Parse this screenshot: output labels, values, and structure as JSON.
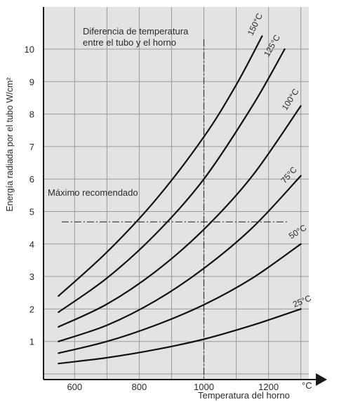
{
  "chart_data": {
    "type": "line",
    "title": "",
    "xlabel": "Temperatura del horno",
    "x_unit": "°C",
    "ylabel": "Energía radiada por el tubo W/cm²",
    "xlim": [
      500,
      1330
    ],
    "ylim": [
      -0.5,
      11.0
    ],
    "x_ticks": [
      600,
      800,
      1000,
      1200
    ],
    "y_ticks": [
      1,
      2,
      3,
      4,
      5,
      6,
      7,
      8,
      9,
      10
    ],
    "grid": true,
    "annotations": {
      "diff_line1": "Diferencia de temperatura",
      "diff_line2": "entre el tubo y el horno",
      "max_recommended": "Máximo recomendado"
    },
    "reference_lines": {
      "max_recommended_y": 4.68,
      "x_ref": 1000
    },
    "series": [
      {
        "name": "25°C",
        "x": [
          550,
          700,
          850,
          1000,
          1150,
          1300
        ],
        "y": [
          0.32,
          0.5,
          0.75,
          1.07,
          1.5,
          2.0
        ]
      },
      {
        "name": "50°C",
        "x": [
          550,
          700,
          850,
          1000,
          1150,
          1300
        ],
        "y": [
          0.64,
          1.0,
          1.5,
          2.13,
          2.95,
          4.0
        ]
      },
      {
        "name": "75°C",
        "x": [
          550,
          700,
          850,
          1000,
          1150,
          1300
        ],
        "y": [
          1.0,
          1.5,
          2.25,
          3.25,
          4.5,
          6.1
        ]
      },
      {
        "name": "100°C",
        "x": [
          550,
          700,
          850,
          1000,
          1150,
          1300
        ],
        "y": [
          1.45,
          2.15,
          3.15,
          4.45,
          6.1,
          8.25
        ]
      },
      {
        "name": "125°C",
        "x": [
          550,
          700,
          850,
          1000,
          1150,
          1250
        ],
        "y": [
          1.9,
          2.95,
          4.3,
          6.0,
          8.25,
          10.0
        ]
      },
      {
        "name": "150°C",
        "x": [
          550,
          700,
          850,
          1000,
          1100,
          1180
        ],
        "y": [
          2.4,
          3.75,
          5.35,
          7.3,
          8.9,
          10.4
        ]
      }
    ]
  }
}
